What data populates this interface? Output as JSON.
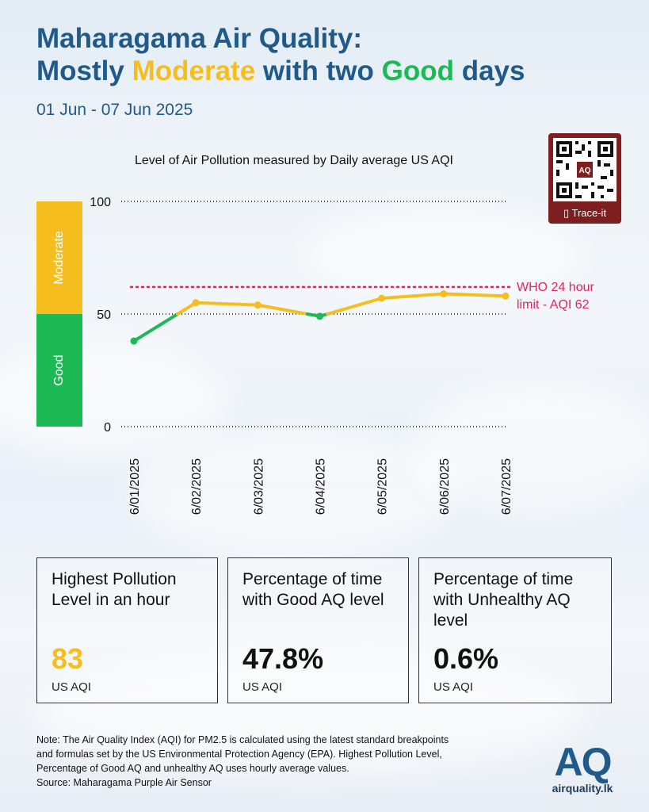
{
  "header": {
    "title_part1": "Maharagama Air Quality:",
    "title_part2a": "Mostly ",
    "title_moderate": "Moderate",
    "title_part2b": " with two ",
    "title_good": "Good",
    "title_part2c": " days",
    "date_range": "01 Jun - 07 Jun 2025"
  },
  "colors": {
    "title": "#1f5a8a",
    "moderate": "#f5be1e",
    "good": "#1db954",
    "who": "#e0245e",
    "qr": "#7e1e1e"
  },
  "qr": {
    "label": "Trace-it",
    "icon": "phone-icon",
    "center_mark": "AQ"
  },
  "chart_data": {
    "type": "line",
    "title": "Level of Air Pollution measured by Daily average US AQI",
    "categories": [
      "6/01/2025",
      "6/02/2025",
      "6/03/2025",
      "6/04/2025",
      "6/05/2025",
      "6/06/2025",
      "6/07/2025"
    ],
    "values": [
      38,
      55,
      54,
      49,
      57,
      59,
      58
    ],
    "ylim": [
      0,
      100
    ],
    "yticks": [
      "0",
      "50",
      "100"
    ],
    "bands": [
      {
        "label": "Good",
        "from": 0,
        "to": 50,
        "color": "#1db954"
      },
      {
        "label": "Moderate",
        "from": 50,
        "to": 100,
        "color": "#f5be1e"
      }
    ],
    "reference_line": {
      "value": 62,
      "label_line1": "WHO 24 hour",
      "label_line2": "limit - AQI 62"
    },
    "grid": "dotted at 0, 50, 100"
  },
  "cards": [
    {
      "title": "Highest Pollution Level in an hour",
      "value": "83",
      "unit": "US AQI",
      "value_color": "#f5be1e"
    },
    {
      "title": "Percentage of time with Good AQ level",
      "value": "47.8%",
      "unit": "US AQI",
      "value_color": "#111111"
    },
    {
      "title": "Percentage of time with Unhealthy AQ level",
      "value": "0.6%",
      "unit": "US AQI",
      "value_color": "#111111"
    }
  ],
  "note": {
    "line1": "Note: The Air Quality Index (AQI) for PM2.5 is calculated using the latest standard breakpoints",
    "line2": "and formulas set by the US Environmental Protection Agency (EPA). Highest Pollution Level,",
    "line3": "Percentage of Good AQ and unhealthy AQ uses hourly average values.",
    "line4": "Source: Maharagama Purple Air Sensor"
  },
  "logo": {
    "mark": "AQ",
    "text": "airquality.lk"
  }
}
